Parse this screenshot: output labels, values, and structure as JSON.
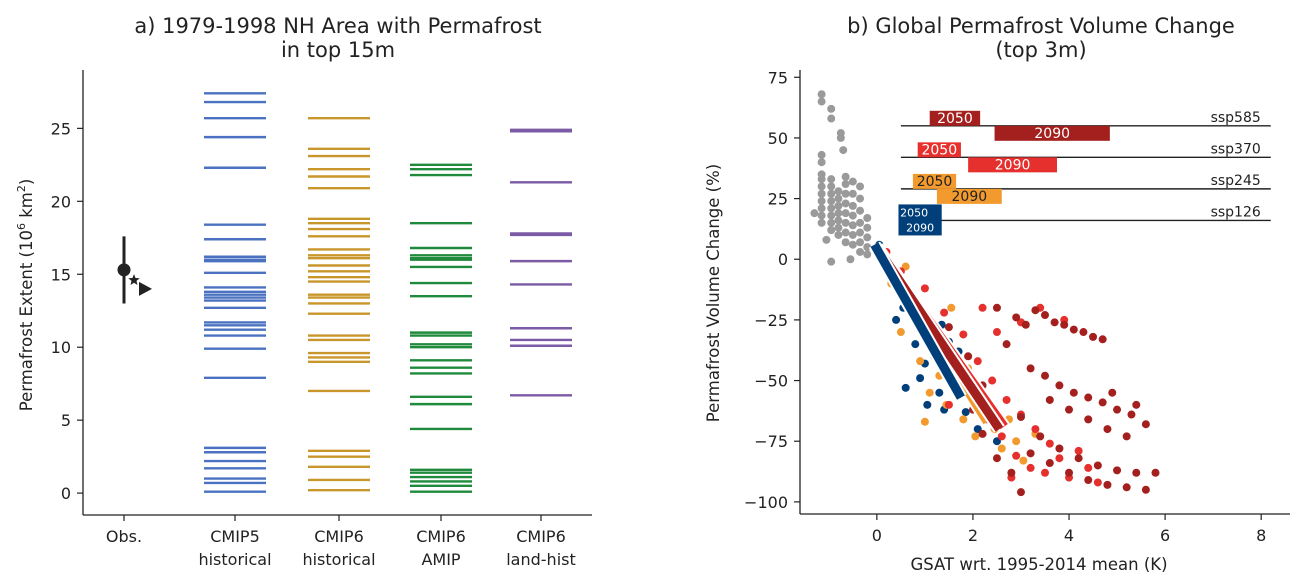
{
  "colors": {
    "cmip5": "#4a72c0",
    "cmip6_hist": "#c8962a",
    "amip": "#1f8a3c",
    "landhist": "#7b5aa6",
    "obs": "#222222",
    "gray": "#9a9a9a",
    "ssp585": "#a4201e",
    "ssp370": "#e5302d",
    "ssp245": "#f29a2e",
    "ssp126": "#003f7a"
  },
  "chart_data": [
    {
      "type": "strip",
      "title_line1": "a) 1979-1998 NH Area with Permafrost",
      "title_line2": "in top 15m",
      "ylabel_prefix": "Permafrost Extent (10",
      "ylabel_sup": "6",
      "ylabel_mid": " km",
      "ylabel_sup2": "2",
      "ylabel_suffix": ")",
      "ylim": [
        -1.5,
        29
      ],
      "yticks": [
        0,
        5,
        10,
        15,
        20,
        25
      ],
      "categories": [
        {
          "line1": "Obs.",
          "line2": ""
        },
        {
          "line1": "CMIP5",
          "line2": "historical"
        },
        {
          "line1": "CMIP6",
          "line2": "historical"
        },
        {
          "line1": "CMIP6",
          "line2": "AMIP"
        },
        {
          "line1": "CMIP6",
          "line2": "land-hist"
        }
      ],
      "obs": {
        "value": 15.3,
        "low": 13.0,
        "high": 17.6,
        "star": 14.6,
        "triangle": 14.0
      },
      "series": [
        {
          "key": "cmip5",
          "values": [
            27.4,
            26.8,
            25.7,
            24.4,
            22.3,
            18.4,
            17.4,
            16.2,
            16.0,
            15.9,
            15.1,
            14.1,
            13.8,
            13.6,
            13.4,
            13.2,
            12.7,
            11.7,
            11.5,
            11.2,
            10.8,
            9.9,
            7.9,
            3.1,
            2.8,
            2.2,
            1.7,
            1.0,
            0.7,
            0.1
          ]
        },
        {
          "key": "cmip6_hist",
          "values": [
            25.7,
            23.6,
            23.1,
            22.2,
            21.7,
            20.9,
            18.8,
            18.5,
            18.1,
            17.6,
            16.7,
            16.3,
            16.1,
            15.6,
            15.2,
            14.8,
            14.5,
            13.6,
            13.4,
            13.0,
            12.3,
            10.8,
            10.5,
            9.6,
            9.3,
            9.0,
            7.0,
            2.9,
            2.5,
            1.8,
            0.9,
            0.2
          ]
        },
        {
          "key": "amip",
          "values": [
            22.5,
            22.2,
            21.8,
            18.5,
            16.8,
            16.3,
            16.1,
            16.0,
            15.5,
            14.4,
            13.5,
            11.0,
            10.8,
            10.2,
            10.0,
            9.1,
            8.6,
            8.2,
            6.6,
            6.1,
            4.4,
            1.6,
            1.4,
            1.1,
            0.8,
            0.5,
            0.1
          ]
        },
        {
          "key": "landhist",
          "values": [
            24.9,
            24.8,
            21.3,
            17.8,
            17.7,
            15.9,
            14.3,
            11.3,
            10.5,
            10.1,
            6.7
          ]
        }
      ]
    },
    {
      "type": "scatter",
      "title_line1": "b) Global Permafrost Volume Change",
      "title_line2": "(top 3m)",
      "xlabel": "GSAT wrt. 1995-2014 mean (K)",
      "ylabel": "Permafrost Volume Change (%)",
      "xlim": [
        -1.6,
        8.6
      ],
      "ylim": [
        -105,
        78
      ],
      "xticks": [
        0,
        2,
        4,
        6,
        8
      ],
      "yticks": [
        75,
        50,
        25,
        0,
        -25,
        -50,
        -75,
        -100
      ],
      "scenarios": [
        {
          "name": "ssp585",
          "key": "ssp585",
          "line_y": 55,
          "line_x": [
            0.5,
            8.2
          ],
          "box2050": {
            "x": [
              1.1,
              2.15
            ],
            "label": "2050"
          },
          "box2090": {
            "x": [
              2.45,
              4.85
            ],
            "label": "2090"
          }
        },
        {
          "name": "ssp370",
          "key": "ssp370",
          "line_y": 42,
          "line_x": [
            0.5,
            8.2
          ],
          "box2050": {
            "x": [
              0.85,
              1.75
            ],
            "label": "2050"
          },
          "box2090": {
            "x": [
              1.9,
              3.75
            ],
            "label": "2090"
          }
        },
        {
          "name": "ssp245",
          "key": "ssp245",
          "line_y": 29,
          "line_x": [
            0.5,
            8.2
          ],
          "box2050": {
            "x": [
              0.75,
              1.65
            ],
            "label": "2050"
          },
          "box2090": {
            "x": [
              1.25,
              2.6
            ],
            "label": "2090"
          }
        },
        {
          "name": "ssp126",
          "key": "ssp126",
          "line_y": 16,
          "line_x": [
            0.5,
            8.2
          ],
          "box2050": {
            "x": [
              0.45,
              1.35
            ],
            "label": "2050"
          },
          "box2090": {
            "x": [
              0.45,
              1.35
            ],
            "label": "2090"
          }
        }
      ],
      "regression_lines": [
        {
          "key": "ssp370",
          "x": [
            0.0,
            2.65
          ],
          "y": [
            5,
            -69
          ]
        },
        {
          "key": "ssp245",
          "x": [
            0.0,
            2.3
          ],
          "y": [
            5,
            -67
          ]
        },
        {
          "key": "ssp585",
          "x": [
            0.0,
            2.55
          ],
          "y": [
            5,
            -70
          ]
        },
        {
          "key": "ssp126",
          "x": [
            -0.05,
            1.75
          ],
          "y": [
            6,
            -57
          ]
        }
      ],
      "gray_points": [
        [
          -1.15,
          68
        ],
        [
          -1.15,
          65
        ],
        [
          -0.95,
          62
        ],
        [
          -0.95,
          58
        ],
        [
          -0.75,
          52
        ],
        [
          -0.75,
          50
        ],
        [
          -0.7,
          45
        ],
        [
          -1.15,
          43
        ],
        [
          -1.15,
          40
        ],
        [
          -1.15,
          35
        ],
        [
          -1.15,
          33
        ],
        [
          -1.15,
          30
        ],
        [
          -1.15,
          27
        ],
        [
          -1.15,
          24
        ],
        [
          -1.15,
          21
        ],
        [
          -1.15,
          18
        ],
        [
          -1.15,
          15
        ],
        [
          -1.3,
          19
        ],
        [
          -0.95,
          33
        ],
        [
          -0.95,
          30
        ],
        [
          -0.95,
          27
        ],
        [
          -0.95,
          24
        ],
        [
          -0.95,
          21
        ],
        [
          -0.95,
          18
        ],
        [
          -0.95,
          15
        ],
        [
          -0.95,
          12
        ],
        [
          -0.8,
          28
        ],
        [
          -0.8,
          25
        ],
        [
          -0.8,
          22
        ],
        [
          -0.8,
          19
        ],
        [
          -0.8,
          16
        ],
        [
          -0.8,
          13
        ],
        [
          -0.8,
          10
        ],
        [
          -0.65,
          34
        ],
        [
          -0.65,
          31
        ],
        [
          -0.65,
          27
        ],
        [
          -0.65,
          23
        ],
        [
          -0.65,
          19
        ],
        [
          -0.65,
          15
        ],
        [
          -0.65,
          11
        ],
        [
          -0.65,
          7
        ],
        [
          -0.5,
          32
        ],
        [
          -0.5,
          27
        ],
        [
          -0.5,
          22
        ],
        [
          -0.5,
          18
        ],
        [
          -0.5,
          14
        ],
        [
          -0.5,
          10
        ],
        [
          -0.5,
          6
        ],
        [
          -0.35,
          30
        ],
        [
          -0.35,
          25
        ],
        [
          -0.35,
          20
        ],
        [
          -0.35,
          15
        ],
        [
          -0.35,
          11
        ],
        [
          -0.35,
          7
        ],
        [
          -0.35,
          3
        ],
        [
          -0.2,
          17
        ],
        [
          -0.2,
          13
        ],
        [
          -0.2,
          9
        ],
        [
          -0.2,
          5
        ],
        [
          -0.2,
          2
        ],
        [
          -0.95,
          -1
        ],
        [
          -1.05,
          8
        ],
        [
          -0.55,
          0
        ]
      ],
      "points": [
        [
          "ssp126",
          0.05,
          6
        ],
        [
          "ssp126",
          0.4,
          -25
        ],
        [
          "ssp126",
          0.55,
          -20
        ],
        [
          "ssp126",
          0.6,
          -53
        ],
        [
          "ssp126",
          0.8,
          -35
        ],
        [
          "ssp126",
          0.9,
          -49
        ],
        [
          "ssp126",
          1.0,
          -43
        ],
        [
          "ssp126",
          1.1,
          -30
        ],
        [
          "ssp126",
          1.2,
          -40
        ],
        [
          "ssp126",
          1.3,
          -55
        ],
        [
          "ssp126",
          1.4,
          -62
        ],
        [
          "ssp126",
          1.5,
          -34
        ],
        [
          "ssp126",
          1.6,
          -45
        ],
        [
          "ssp126",
          1.7,
          -38
        ],
        [
          "ssp126",
          1.85,
          -63
        ],
        [
          "ssp126",
          2.0,
          -52
        ],
        [
          "ssp126",
          2.1,
          -70
        ],
        [
          "ssp126",
          2.3,
          -58
        ],
        [
          "ssp126",
          2.5,
          -75
        ],
        [
          "ssp126",
          0.75,
          -22
        ],
        [
          "ssp126",
          1.05,
          -60
        ],
        [
          "ssp126",
          1.35,
          -27
        ],
        [
          "ssp245",
          0.3,
          -10
        ],
        [
          "ssp245",
          0.5,
          -30
        ],
        [
          "ssp245",
          0.7,
          -15
        ],
        [
          "ssp245",
          0.9,
          -42
        ],
        [
          "ssp245",
          1.1,
          -55
        ],
        [
          "ssp245",
          1.2,
          -27
        ],
        [
          "ssp245",
          1.3,
          -48
        ],
        [
          "ssp245",
          1.45,
          -60
        ],
        [
          "ssp245",
          1.55,
          -20
        ],
        [
          "ssp245",
          1.7,
          -52
        ],
        [
          "ssp245",
          1.8,
          -66
        ],
        [
          "ssp245",
          1.9,
          -45
        ],
        [
          "ssp245",
          2.05,
          -73
        ],
        [
          "ssp245",
          2.15,
          -57
        ],
        [
          "ssp245",
          2.3,
          -62
        ],
        [
          "ssp245",
          2.45,
          -70
        ],
        [
          "ssp245",
          2.6,
          -78
        ],
        [
          "ssp245",
          2.75,
          -66
        ],
        [
          "ssp245",
          2.9,
          -75
        ],
        [
          "ssp245",
          3.05,
          -83
        ],
        [
          "ssp245",
          3.3,
          -72
        ],
        [
          "ssp245",
          1.0,
          -67
        ],
        [
          "ssp245",
          0.6,
          -3
        ],
        [
          "ssp245",
          1.6,
          -38
        ],
        [
          "ssp370",
          0.2,
          3
        ],
        [
          "ssp370",
          0.5,
          -5
        ],
        [
          "ssp370",
          0.8,
          -25
        ],
        [
          "ssp370",
          1.0,
          -12
        ],
        [
          "ssp370",
          1.2,
          -36
        ],
        [
          "ssp370",
          1.4,
          -22
        ],
        [
          "ssp370",
          1.6,
          -47
        ],
        [
          "ssp370",
          1.8,
          -31
        ],
        [
          "ssp370",
          2.0,
          -58
        ],
        [
          "ssp370",
          2.1,
          -42
        ],
        [
          "ssp370",
          2.3,
          -66
        ],
        [
          "ssp370",
          2.4,
          -50
        ],
        [
          "ssp370",
          2.6,
          -73
        ],
        [
          "ssp370",
          2.7,
          -58
        ],
        [
          "ssp370",
          2.9,
          -81
        ],
        [
          "ssp370",
          3.0,
          -64
        ],
        [
          "ssp370",
          3.2,
          -86
        ],
        [
          "ssp370",
          3.3,
          -70
        ],
        [
          "ssp370",
          3.5,
          -88
        ],
        [
          "ssp370",
          3.6,
          -76
        ],
        [
          "ssp370",
          3.8,
          -82
        ],
        [
          "ssp370",
          4.0,
          -90
        ],
        [
          "ssp370",
          4.2,
          -79
        ],
        [
          "ssp370",
          4.4,
          -86
        ],
        [
          "ssp370",
          4.6,
          -92
        ],
        [
          "ssp370",
          3.4,
          -20
        ],
        [
          "ssp370",
          3.0,
          -26
        ],
        [
          "ssp370",
          2.5,
          -30
        ],
        [
          "ssp370",
          2.8,
          -90
        ],
        [
          "ssp370",
          1.5,
          -60
        ],
        [
          "ssp370",
          3.9,
          -25
        ],
        [
          "ssp370",
          2.2,
          -20
        ],
        [
          "ssp585",
          1.5,
          -28
        ],
        [
          "ssp585",
          1.9,
          -40
        ],
        [
          "ssp585",
          2.2,
          -52
        ],
        [
          "ssp585",
          2.5,
          -20
        ],
        [
          "ssp585",
          2.7,
          -35
        ],
        [
          "ssp585",
          2.9,
          -24
        ],
        [
          "ssp585",
          3.1,
          -27
        ],
        [
          "ssp585",
          3.3,
          -21
        ],
        [
          "ssp585",
          3.5,
          -23
        ],
        [
          "ssp585",
          3.7,
          -26
        ],
        [
          "ssp585",
          3.9,
          -27
        ],
        [
          "ssp585",
          4.1,
          -29
        ],
        [
          "ssp585",
          4.3,
          -30
        ],
        [
          "ssp585",
          4.5,
          -32
        ],
        [
          "ssp585",
          4.7,
          -33
        ],
        [
          "ssp585",
          3.2,
          -45
        ],
        [
          "ssp585",
          3.5,
          -48
        ],
        [
          "ssp585",
          3.8,
          -52
        ],
        [
          "ssp585",
          4.1,
          -55
        ],
        [
          "ssp585",
          4.4,
          -57
        ],
        [
          "ssp585",
          4.7,
          -59
        ],
        [
          "ssp585",
          5.0,
          -62
        ],
        [
          "ssp585",
          5.3,
          -64
        ],
        [
          "ssp585",
          5.6,
          -68
        ],
        [
          "ssp585",
          3.6,
          -58
        ],
        [
          "ssp585",
          4.0,
          -62
        ],
        [
          "ssp585",
          4.4,
          -66
        ],
        [
          "ssp585",
          4.8,
          -70
        ],
        [
          "ssp585",
          5.2,
          -73
        ],
        [
          "ssp585",
          3.0,
          -65
        ],
        [
          "ssp585",
          3.4,
          -73
        ],
        [
          "ssp585",
          3.8,
          -78
        ],
        [
          "ssp585",
          4.2,
          -82
        ],
        [
          "ssp585",
          4.6,
          -85
        ],
        [
          "ssp585",
          5.0,
          -87
        ],
        [
          "ssp585",
          5.4,
          -88
        ],
        [
          "ssp585",
          5.8,
          -88
        ],
        [
          "ssp585",
          3.2,
          -80
        ],
        [
          "ssp585",
          3.6,
          -84
        ],
        [
          "ssp585",
          4.0,
          -88
        ],
        [
          "ssp585",
          4.4,
          -91
        ],
        [
          "ssp585",
          4.8,
          -93
        ],
        [
          "ssp585",
          5.2,
          -94
        ],
        [
          "ssp585",
          5.6,
          -95
        ],
        [
          "ssp585",
          2.8,
          -88
        ],
        [
          "ssp585",
          3.0,
          -96
        ],
        [
          "ssp585",
          2.5,
          -82
        ],
        [
          "ssp585",
          2.2,
          -72
        ],
        [
          "ssp585",
          2.0,
          -62
        ],
        [
          "ssp585",
          1.7,
          -50
        ],
        [
          "ssp585",
          5.4,
          -60
        ],
        [
          "ssp585",
          4.9,
          -55
        ]
      ]
    }
  ]
}
